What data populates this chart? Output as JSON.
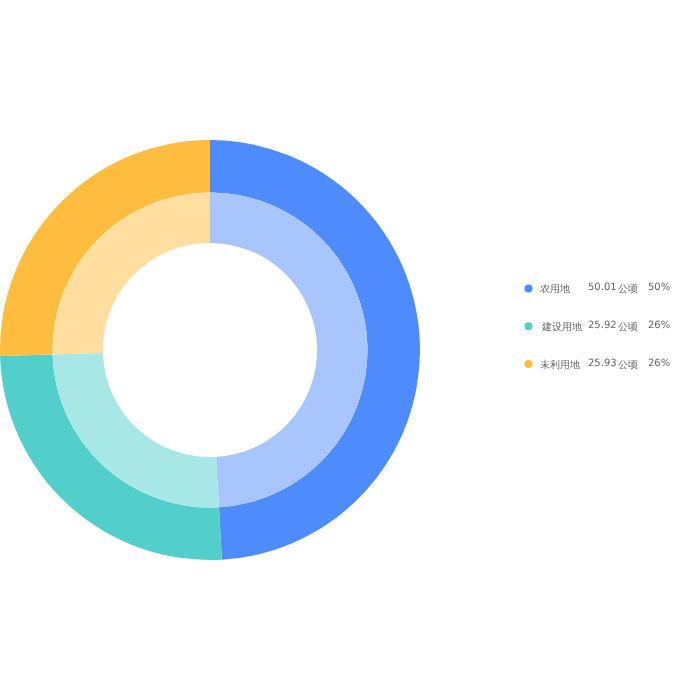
{
  "chart_data": {
    "type": "donut",
    "categories": [
      "农用地",
      "建设用地",
      "未利用地"
    ],
    "annotations": [
      "公顷",
      "公顷",
      "公顷",
      "50%",
      "26%",
      "26%"
    ],
    "series": [
      {
        "colors": [
          "#4e8cfd",
          "#52cfcb",
          "#ffbd3f"
        ],
        "values": [
          50.01,
          25.92,
          25.93
        ],
        "value_labels": [
          "50.01",
          "25.92",
          "25.93"
        ]
      },
      {
        "colors": [
          "#a8c5fe",
          "#a7e7e5",
          "#ffdea0"
        ],
        "values": [
          49.1,
          25.45,
          25.45
        ]
      }
    ],
    "legend": "right"
  }
}
